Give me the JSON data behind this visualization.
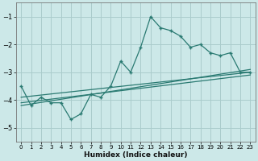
{
  "xlabel": "Humidex (Indice chaleur)",
  "bg_color": "#cce8e8",
  "grid_color": "#aacccc",
  "line_color": "#2a7a72",
  "x_data": [
    0,
    1,
    2,
    3,
    4,
    5,
    6,
    7,
    8,
    9,
    10,
    11,
    12,
    13,
    14,
    15,
    16,
    17,
    18,
    19,
    20,
    21,
    22,
    23
  ],
  "y_main": [
    -3.5,
    -4.2,
    -3.9,
    -4.1,
    -4.1,
    -4.7,
    -4.5,
    -3.8,
    -3.9,
    -3.5,
    -2.6,
    -3.0,
    -2.1,
    -1.0,
    -1.4,
    -1.5,
    -1.7,
    -2.1,
    -2.0,
    -2.3,
    -2.4,
    -2.3,
    -3.0,
    -3.0
  ],
  "ylim": [
    -5.5,
    -0.5
  ],
  "xlim": [
    -0.5,
    23.5
  ],
  "yticks": [
    -5,
    -4,
    -3,
    -2,
    -1
  ],
  "xticks": [
    0,
    1,
    2,
    3,
    4,
    5,
    6,
    7,
    8,
    9,
    10,
    11,
    12,
    13,
    14,
    15,
    16,
    17,
    18,
    19,
    20,
    21,
    22,
    23
  ],
  "trend1_x": [
    0,
    23
  ],
  "trend1_y": [
    -3.9,
    -3.0
  ],
  "trend2_x": [
    0,
    23
  ],
  "trend2_y": [
    -4.2,
    -2.9
  ],
  "trend3_x": [
    0,
    23
  ],
  "trend3_y": [
    -4.1,
    -3.1
  ]
}
